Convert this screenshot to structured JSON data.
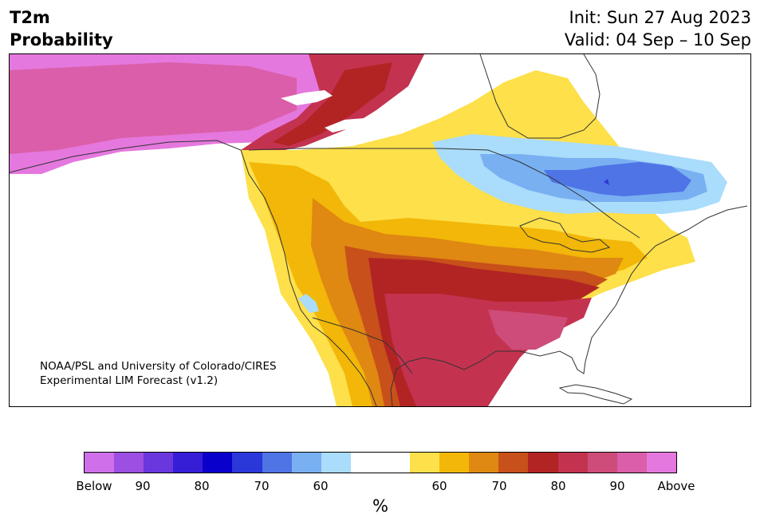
{
  "header": {
    "title_line1": "T2m",
    "title_line2": "Probability",
    "init": "Init: Sun 27 Aug 2023",
    "valid": "Valid: 04 Sep – 10 Sep"
  },
  "map": {
    "credit_line1": "NOAA/PSL and University of Colorado/CIRES",
    "credit_line2": "Experimental LIM Forecast (v1.2)",
    "colors": {
      "above_100": "#e578de",
      "above_95": "#da5ea9",
      "above_90": "#ce4c7a",
      "above_85": "#c33350",
      "above_80": "#b22424",
      "above_75": "#c8501a",
      "above_70": "#df8812",
      "above_65": "#f2b708",
      "above_60": "#fde04a",
      "neutral": "#ffffff",
      "below_60": "#aadcfb",
      "below_65": "#78b0f2",
      "below_70": "#4f74e6",
      "below_75": "#2b38d9",
      "below_80": "#0a00cc",
      "below_85": "#361dd6",
      "below_90": "#6a36dd",
      "below_95": "#9c4fe0",
      "below_100": "#cf6fe9",
      "land_outline": "#333333"
    }
  },
  "colorbar": {
    "segments": [
      "#cf6fe9",
      "#9c4fe0",
      "#6a36dd",
      "#361dd6",
      "#0a00cc",
      "#2b38d9",
      "#4f74e6",
      "#78b0f2",
      "#aadcfb",
      "#ffffff",
      "#ffffff",
      "#fde04a",
      "#f2b708",
      "#df8812",
      "#c8501a",
      "#b22424",
      "#c33350",
      "#ce4c7a",
      "#da5ea9",
      "#e578de"
    ],
    "tick_labels": [
      "Below",
      "90",
      "80",
      "70",
      "60",
      "60",
      "70",
      "80",
      "90",
      "Above"
    ],
    "unit": "%"
  }
}
